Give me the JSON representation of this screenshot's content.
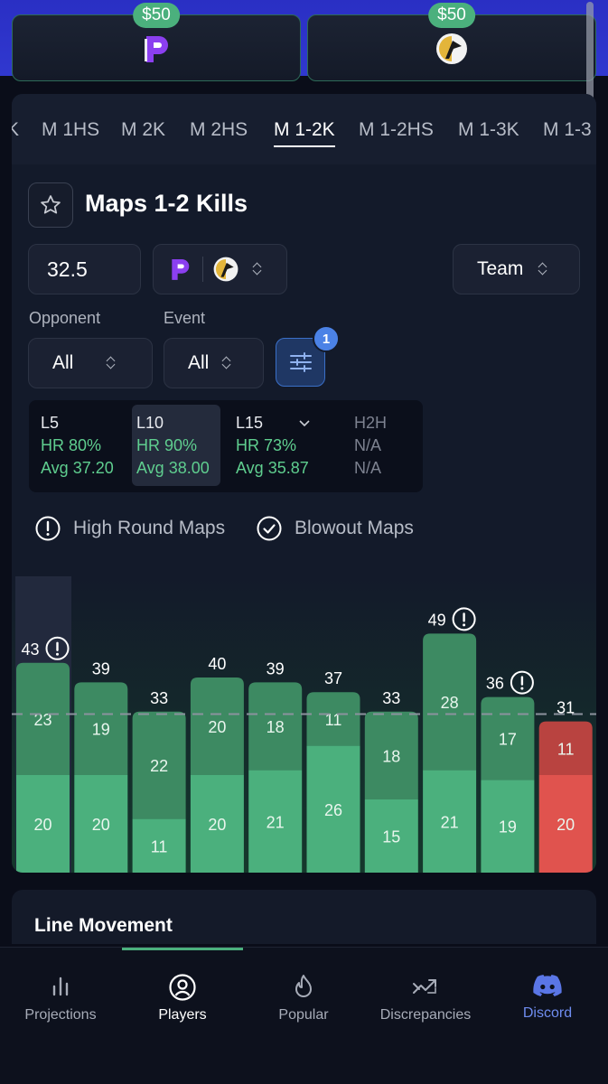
{
  "books": [
    {
      "bonus": "$50",
      "logo": "purple-p-logo"
    },
    {
      "bonus": "$50",
      "logo": "flag-coin-logo"
    }
  ],
  "tabs": [
    {
      "label": "K",
      "active": false
    },
    {
      "label": "M 1HS",
      "active": false
    },
    {
      "label": "M 2K",
      "active": false
    },
    {
      "label": "M 2HS",
      "active": false
    },
    {
      "label": "M 1-2K",
      "active": true
    },
    {
      "label": "M 1-2HS",
      "active": false
    },
    {
      "label": "M 1-3K",
      "active": false
    },
    {
      "label": "M 1-3",
      "active": false
    }
  ],
  "market": {
    "title": "Maps 1-2 Kills"
  },
  "line": {
    "value": "32.5"
  },
  "team_select": {
    "label": "Team"
  },
  "filters": {
    "opponent_label": "Opponent",
    "opponent_value": "All",
    "event_label": "Event",
    "event_value": "All",
    "badge_count": "1"
  },
  "stats": [
    {
      "head": "L5",
      "hr": "HR 80%",
      "avg": "Avg 37.20"
    },
    {
      "head": "L10",
      "hr": "HR 90%",
      "avg": "Avg 38.00"
    },
    {
      "head": "L15",
      "hr": "HR 73%",
      "avg": "Avg 35.87"
    },
    {
      "head": "H2H",
      "hr": "N/A",
      "avg": "N/A"
    }
  ],
  "flags": {
    "high_round": "High Round Maps",
    "blowout": "Blowout Maps"
  },
  "colors": {
    "green": "#4bb07d",
    "green_dark": "#3d8a62",
    "red": "#e0534e",
    "red_dark": "#b94340",
    "accent": "#4b82e6"
  },
  "chart_data": {
    "type": "bar",
    "stacked": true,
    "line": 32.5,
    "totals": [
      43,
      39,
      33,
      40,
      39,
      37,
      33,
      49,
      36,
      31
    ],
    "map1": [
      20,
      20,
      11,
      20,
      21,
      26,
      15,
      21,
      19,
      20
    ],
    "map2": [
      23,
      19,
      22,
      20,
      18,
      11,
      18,
      28,
      17,
      11
    ],
    "high_round_flag": [
      true,
      false,
      false,
      false,
      false,
      false,
      false,
      true,
      true,
      false
    ],
    "hit": [
      true,
      true,
      true,
      true,
      true,
      true,
      true,
      true,
      true,
      false
    ]
  },
  "bottom_card": {
    "title": "Line Movement"
  },
  "nav": [
    {
      "label": "Projections",
      "icon": "bar-chart-icon",
      "active": false
    },
    {
      "label": "Players",
      "icon": "user-circle-icon",
      "active": true
    },
    {
      "label": "Popular",
      "icon": "flame-icon",
      "active": false
    },
    {
      "label": "Discrepancies",
      "icon": "trend-arrows-icon",
      "active": false
    },
    {
      "label": "Discord",
      "icon": "discord-icon",
      "active": false
    }
  ]
}
